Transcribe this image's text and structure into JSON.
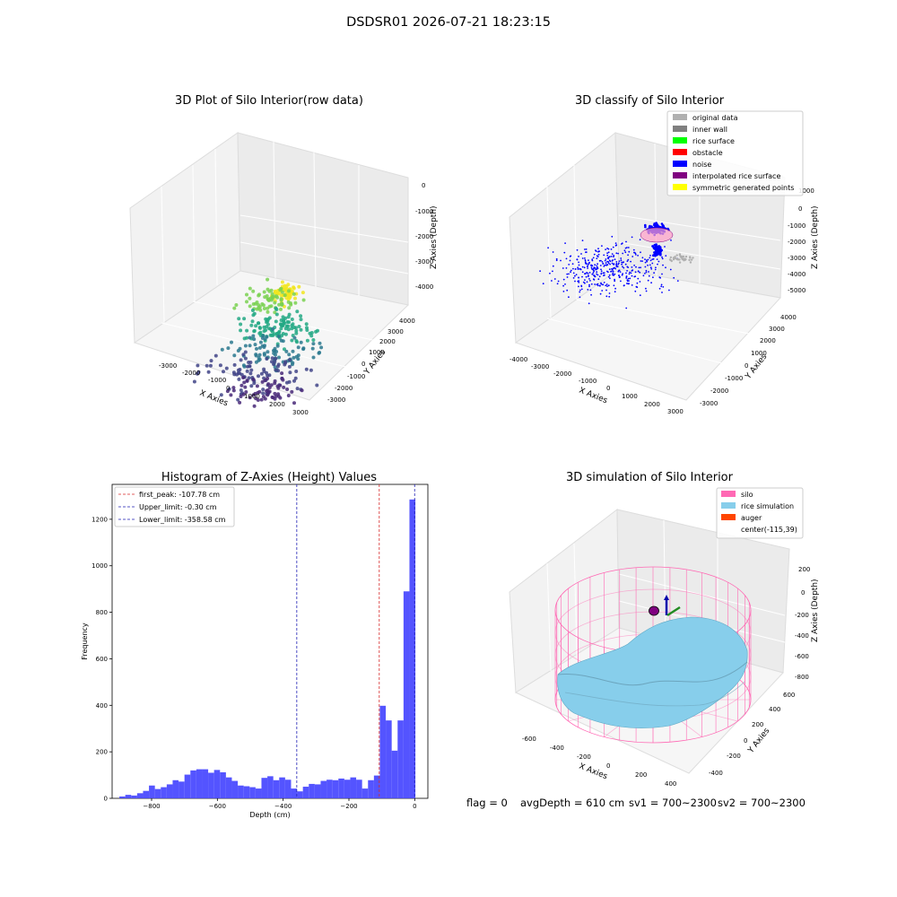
{
  "figure": {
    "suptitle": "DSDSR01 2026-07-21 18:23:15",
    "status": {
      "flag": "flag = 0",
      "avg_depth": "avgDepth = 610 cm",
      "sv1": "sv1 = 700~2300",
      "sv2": "sv2 = 700~2300"
    }
  },
  "colors": {
    "hist_bar": "#4b4bff",
    "first_peak": "#d62728",
    "limits": "#1f1fb4",
    "silo": "#ff69b4",
    "rice": "#87ceeb",
    "auger": "#ff4500",
    "noise": "#0000ff",
    "interp": "#800080",
    "symmetric": "#ffff00",
    "original": "#b0b0b0",
    "inner_wall": "#808080",
    "rice_surface": "#00ff00",
    "obstacle": "#ff0000"
  },
  "chart_data": [
    {
      "type": "scatter",
      "title": "3D Plot of Silo Interior(row data)",
      "xlabel": "X Axies",
      "ylabel": "Y Axies",
      "zlabel": "Z Axies (Depth)",
      "x_ticks": [
        "-3000",
        "-2000",
        "-1000",
        "0",
        "1000",
        "2000",
        "3000"
      ],
      "y_ticks": [
        "-3000",
        "-2000",
        "-1000",
        "0",
        "1000",
        "2000",
        "3000",
        "4000"
      ],
      "z_ticks": [
        "0",
        "-1000",
        "-2000",
        "-3000",
        "-4000"
      ],
      "colormap": "viridis",
      "clusters": [
        {
          "x": 0,
          "y": 800,
          "z": -700,
          "spread": 600,
          "n": 60,
          "color": "#f1e51d"
        },
        {
          "x": -400,
          "y": 600,
          "z": -1100,
          "spread": 1200,
          "n": 70,
          "color": "#7ad151"
        },
        {
          "x": 200,
          "y": 200,
          "z": -2000,
          "spread": 1600,
          "n": 110,
          "color": "#22a884"
        },
        {
          "x": 400,
          "y": -200,
          "z": -2900,
          "spread": 2000,
          "n": 80,
          "color": "#2a788e"
        },
        {
          "x": 0,
          "y": -600,
          "z": -3700,
          "spread": 2200,
          "n": 90,
          "color": "#414487"
        },
        {
          "x": 600,
          "y": -900,
          "z": -4200,
          "spread": 1700,
          "n": 60,
          "color": "#482878"
        }
      ]
    },
    {
      "type": "scatter",
      "title": "3D classify of Silo Interior",
      "xlabel": "X Axies",
      "ylabel": "Y Axies",
      "zlabel": "Z Axies (Depth)",
      "x_ticks": [
        "-4000",
        "-3000",
        "-2000",
        "-1000",
        "0",
        "1000",
        "2000",
        "3000"
      ],
      "y_ticks": [
        "-3000",
        "-2000",
        "-1000",
        "0",
        "1000",
        "2000",
        "3000",
        "4000"
      ],
      "z_ticks": [
        "1000",
        "0",
        "-1000",
        "-2000",
        "-3000",
        "-4000",
        "-5000"
      ],
      "legend": [
        {
          "label": "original data",
          "color": "#b0b0b0"
        },
        {
          "label": "inner wall",
          "color": "#808080"
        },
        {
          "label": "rice surface",
          "color": "#00ff00"
        },
        {
          "label": "obstacle",
          "color": "#ff0000"
        },
        {
          "label": "noise",
          "color": "#0000ff"
        },
        {
          "label": "interpolated rice surface",
          "color": "#800080"
        },
        {
          "label": "symmetric generated points",
          "color": "#ffff00"
        }
      ],
      "legend_position": "top-right"
    },
    {
      "type": "bar",
      "title": "Histogram of Z-Axies (Height) Values",
      "xlabel": "Depth (cm)",
      "ylabel": "Frequency",
      "xlim": [
        -920,
        40
      ],
      "ylim": [
        0,
        1350
      ],
      "x_ticks": [
        -800,
        -600,
        -400,
        -200,
        0
      ],
      "x_tick_labels": [
        "−800",
        "−600",
        "−400",
        "−200",
        "0"
      ],
      "y_ticks": [
        0,
        200,
        400,
        600,
        800,
        1000,
        1200
      ],
      "bin_start": -898,
      "bin_width": 18,
      "values": [
        8,
        15,
        12,
        22,
        32,
        55,
        40,
        48,
        60,
        78,
        72,
        102,
        120,
        125,
        125,
        110,
        122,
        112,
        90,
        75,
        55,
        52,
        48,
        42,
        88,
        95,
        78,
        90,
        80,
        42,
        30,
        50,
        62,
        60,
        75,
        80,
        78,
        85,
        80,
        90,
        80,
        42,
        78,
        98,
        398,
        335,
        205,
        335,
        890,
        1285
      ],
      "legend": [
        {
          "label": "first_peak: -107.78 cm",
          "value": -107.78,
          "color": "#d62728"
        },
        {
          "label": "Upper_limit: -0.30 cm",
          "value": -0.3,
          "color": "#1f1fb4"
        },
        {
          "label": "Lower_limit: -358.58 cm",
          "value": -358.58,
          "color": "#1f1fb4"
        }
      ],
      "legend_position": "top-left"
    },
    {
      "type": "surface",
      "title": "3D simulation of Silo Interior",
      "xlabel": "X Axies",
      "ylabel": "Y Axies",
      "zlabel": "Z Axies (Depth)",
      "x_ticks": [
        "-600",
        "-400",
        "-200",
        "0",
        "200",
        "400"
      ],
      "y_ticks": [
        "-400",
        "-200",
        "0",
        "200",
        "400",
        "600"
      ],
      "z_ticks": [
        "200",
        "0",
        "-200",
        "-400",
        "-600",
        "-800"
      ],
      "legend": [
        {
          "label": "silo",
          "color": "#ff69b4"
        },
        {
          "label": "rice simulation",
          "color": "#87ceeb"
        },
        {
          "label": "auger",
          "color": "#ff4500"
        },
        {
          "label": "center(-115,39)",
          "color": ""
        }
      ],
      "legend_position": "top-right"
    }
  ]
}
